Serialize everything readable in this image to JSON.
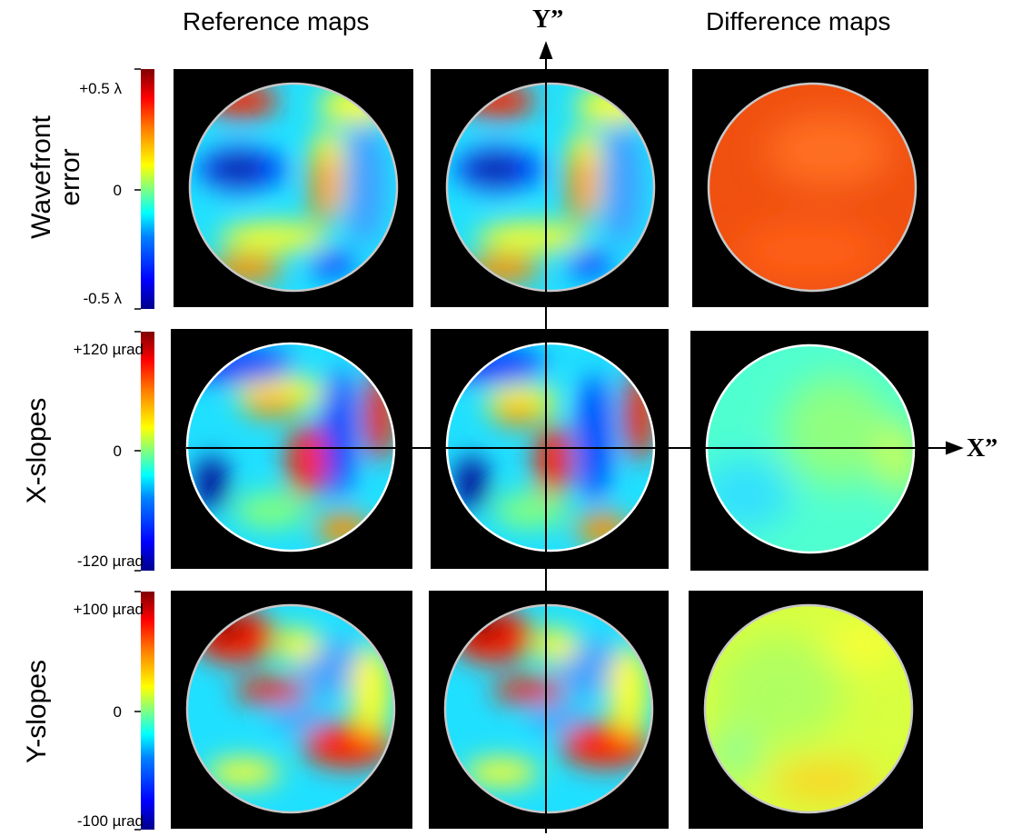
{
  "titles": {
    "reference": "Reference maps",
    "difference": "Difference maps"
  },
  "axes": {
    "y_label": "Y”",
    "x_label": "X”"
  },
  "rows": [
    {
      "label_line1": "Wavefront",
      "label_line2": "error",
      "tick_top": "+0.5 λ",
      "tick_mid": "0",
      "tick_bottom": "-0.5 λ"
    },
    {
      "label_line1": "X-slopes",
      "label_line2": "",
      "tick_top": "+120 µrad",
      "tick_mid": "0",
      "tick_bottom": "-120 µrad"
    },
    {
      "label_line1": "Y-slopes",
      "label_line2": "",
      "tick_top": "+100 µrad",
      "tick_mid": "0",
      "tick_bottom": "-100 µrad"
    }
  ],
  "colors": {
    "darkred": "#800000",
    "red": "#ff2000",
    "orange": "#ff9000",
    "yellow": "#ffff20",
    "green": "#80ff80",
    "cyan": "#20e0ff",
    "lightblue": "#40a0ff",
    "blue": "#0040ff",
    "darkblue": "#000090",
    "diff_orange": "#f05010",
    "diff_cyan": "#50ffd0",
    "diff_yellow": "#d8ff40"
  }
}
